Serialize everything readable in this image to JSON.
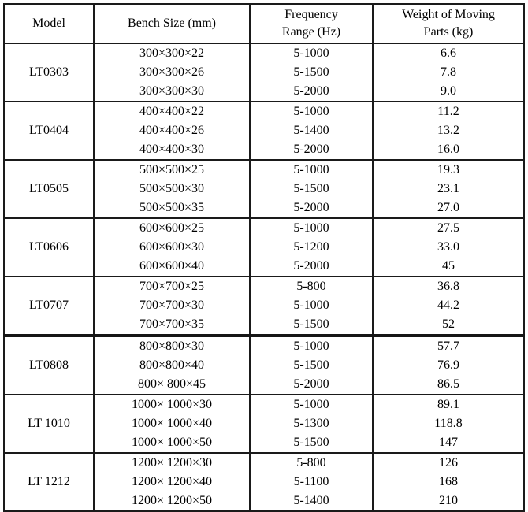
{
  "table": {
    "headers": [
      "Model",
      "Bench Size (mm)",
      "Frequency\nRange (Hz)",
      "Weight of Moving\nParts (kg)"
    ],
    "groups": [
      {
        "model": "LT0303",
        "rows": [
          [
            "300×300×22",
            "5-1000",
            "6.6"
          ],
          [
            "300×300×26",
            "5-1500",
            "7.8"
          ],
          [
            "300×300×30",
            "5-2000",
            "9.0"
          ]
        ]
      },
      {
        "model": "LT0404",
        "rows": [
          [
            "400×400×22",
            "5-1000",
            "11.2"
          ],
          [
            "400×400×26",
            "5-1400",
            "13.2"
          ],
          [
            "400×400×30",
            "5-2000",
            "16.0"
          ]
        ]
      },
      {
        "model": "LT0505",
        "rows": [
          [
            "500×500×25",
            "5-1000",
            "19.3"
          ],
          [
            "500×500×30",
            "5-1500",
            "23.1"
          ],
          [
            "500×500×35",
            "5-2000",
            "27.0"
          ]
        ]
      },
      {
        "model": "LT0606",
        "rows": [
          [
            "600×600×25",
            "5-1000",
            "27.5"
          ],
          [
            "600×600×30",
            "5-1200",
            "33.0"
          ],
          [
            "600×600×40",
            "5-2000",
            "45"
          ]
        ]
      },
      {
        "model": "LT0707",
        "rows": [
          [
            "700×700×25",
            "5-800",
            "36.8"
          ],
          [
            "700×700×30",
            "5-1000",
            "44.2"
          ],
          [
            "700×700×35",
            "5-1500",
            "52"
          ]
        ]
      },
      {
        "model": "LT0808",
        "thick_top": true,
        "rows": [
          [
            "800×800×30",
            "5-1000",
            "57.7"
          ],
          [
            "800×800×40",
            "5-1500",
            "76.9"
          ],
          [
            "800× 800×45",
            "5-2000",
            "86.5"
          ]
        ]
      },
      {
        "model": "LT 1010",
        "rows": [
          [
            "1000× 1000×30",
            "5-1000",
            "89.1"
          ],
          [
            "1000× 1000×40",
            "5-1300",
            "118.8"
          ],
          [
            "1000× 1000×50",
            "5-1500",
            "147"
          ]
        ]
      },
      {
        "model": "LT 1212",
        "rows": [
          [
            "1200× 1200×30",
            "5-800",
            "126"
          ],
          [
            "1200× 1200×40",
            "5-1100",
            "168"
          ],
          [
            "1200× 1200×50",
            "5-1400",
            "210"
          ]
        ]
      }
    ]
  }
}
